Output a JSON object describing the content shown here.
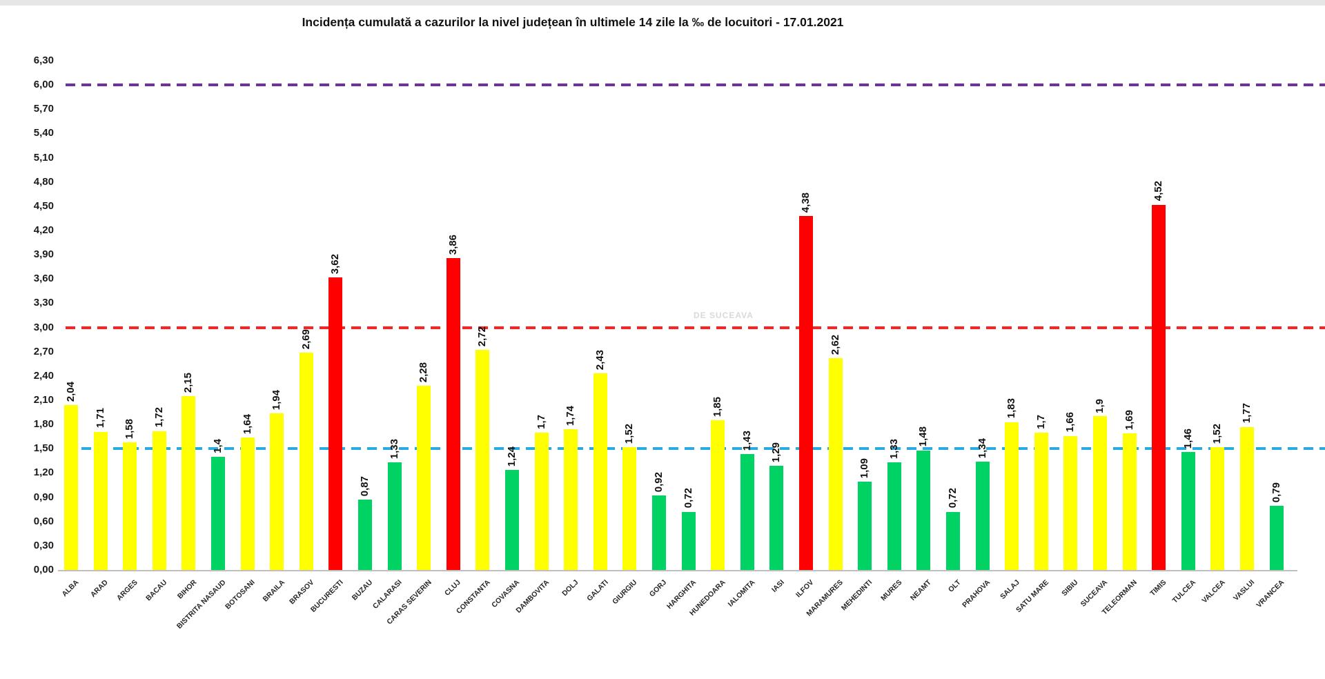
{
  "watermark": "DE SUCEAVA",
  "chart_data": {
    "type": "bar",
    "title": "Incidența cumulată a cazurilor la nivel județean în ultimele 14 zile la ‰ de locuitori - 17.01.2021",
    "xlabel": "",
    "ylabel": "",
    "ylim": [
      0,
      6.3
    ],
    "ytick_step": 0.3,
    "grid": false,
    "legend": "none",
    "yticks": [
      "6,30",
      "6,00",
      "5,70",
      "5,40",
      "5,10",
      "4,80",
      "4,50",
      "4,20",
      "3,90",
      "3,60",
      "3,30",
      "3,00",
      "2,70",
      "2,40",
      "2,10",
      "1,80",
      "1,50",
      "1,20",
      "0,90",
      "0,60",
      "0,30",
      "0,00"
    ],
    "categories": [
      "ALBA",
      "ARAD",
      "ARGES",
      "BACAU",
      "BIHOR",
      "BISTRITA NASAUD",
      "BOTOSANI",
      "BRAILA",
      "BRASOV",
      "BUCURESTI",
      "BUZAU",
      "CALARASI",
      "CARAS SEVERIN",
      "CLUJ",
      "CONSTANTA",
      "COVASNA",
      "DAMBOVITA",
      "DOLJ",
      "GALATI",
      "GIURGIU",
      "GORJ",
      "HARGHITA",
      "HUNEDOARA",
      "IALOMITA",
      "IASI",
      "ILFOV",
      "MARAMURES",
      "MEHEDINTI",
      "MURES",
      "NEAMT",
      "OLT",
      "PRAHOVA",
      "SALAJ",
      "SATU MARE",
      "SIBIU",
      "SUCEAVA",
      "TELEORMAN",
      "TIMIS",
      "TULCEA",
      "VALCEA",
      "VASLUI",
      "VRANCEA"
    ],
    "values": [
      2.04,
      1.71,
      1.58,
      1.72,
      2.15,
      1.4,
      1.64,
      1.94,
      2.69,
      3.62,
      0.87,
      1.33,
      2.28,
      3.86,
      2.72,
      1.24,
      1.7,
      1.74,
      2.43,
      1.52,
      0.92,
      0.72,
      1.85,
      1.43,
      1.29,
      4.38,
      2.62,
      1.09,
      1.33,
      1.48,
      0.72,
      1.34,
      1.83,
      1.7,
      1.66,
      1.9,
      1.69,
      4.52,
      1.46,
      1.52,
      1.77,
      0.79
    ],
    "value_labels": [
      "2,04",
      "1,71",
      "1,58",
      "1,72",
      "2,15",
      "1,4",
      "1,64",
      "1,94",
      "2,69",
      "3,62",
      "0,87",
      "1,33",
      "2,28",
      "3,86",
      "2,72",
      "1,24",
      "1,7",
      "1,74",
      "2,43",
      "1,52",
      "0,92",
      "0,72",
      "1,85",
      "1,43",
      "1,29",
      "4,38",
      "2,62",
      "1,09",
      "1,33",
      "1,48",
      "0,72",
      "1,34",
      "1,83",
      "1,7",
      "1,66",
      "1,9",
      "1,69",
      "4,52",
      "1,46",
      "1,52",
      "1,77",
      "0,79"
    ],
    "bands": [
      "yellow",
      "yellow",
      "yellow",
      "yellow",
      "yellow",
      "green",
      "yellow",
      "yellow",
      "yellow",
      "red",
      "green",
      "green",
      "yellow",
      "red",
      "yellow",
      "green",
      "yellow",
      "yellow",
      "yellow",
      "yellow",
      "green",
      "green",
      "yellow",
      "green",
      "green",
      "red",
      "yellow",
      "green",
      "green",
      "green",
      "green",
      "green",
      "yellow",
      "yellow",
      "yellow",
      "yellow",
      "yellow",
      "red",
      "green",
      "yellow",
      "yellow",
      "green"
    ],
    "colors": {
      "green": "#00d264",
      "yellow": "#ffff00",
      "red": "#ff0000"
    },
    "reference_lines": [
      {
        "name": "purple-line-6.00",
        "value": 6.0,
        "color": "#7030a0",
        "style": "dashed"
      },
      {
        "name": "red-line-3.00",
        "value": 3.0,
        "color": "#ff2020",
        "style": "dashed"
      },
      {
        "name": "blue-line-1.50",
        "value": 1.5,
        "color": "#29abe2",
        "style": "dashed"
      }
    ]
  }
}
